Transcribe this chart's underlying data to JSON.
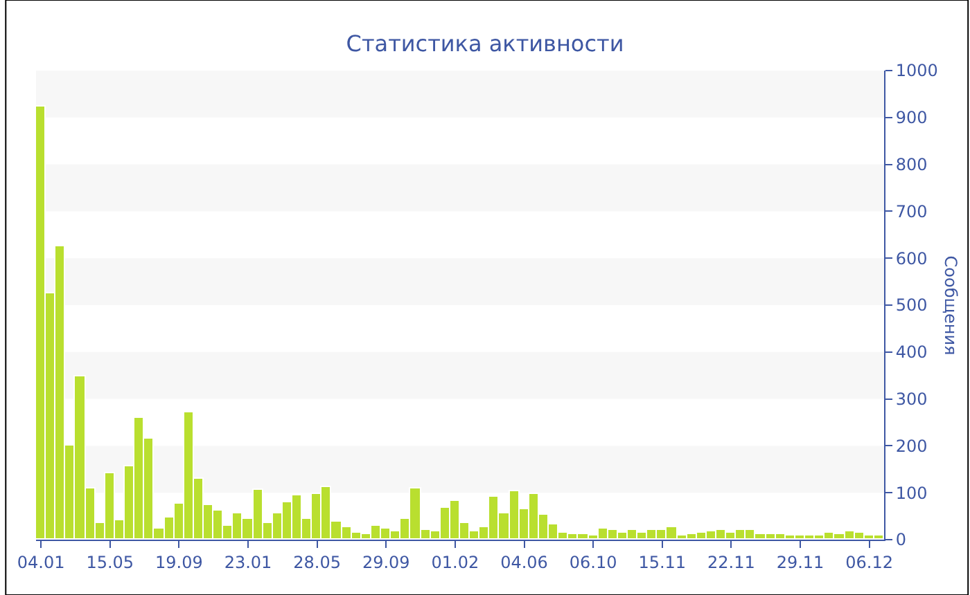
{
  "chart_data": {
    "type": "bar",
    "title": "Статистика активности",
    "ylabel": "Сообщения",
    "categories": [
      "04.01",
      null,
      null,
      null,
      null,
      null,
      null,
      "15.05",
      null,
      null,
      null,
      null,
      null,
      null,
      "19.09",
      null,
      null,
      null,
      null,
      null,
      null,
      "23.01",
      null,
      null,
      null,
      null,
      null,
      null,
      "28.05",
      null,
      null,
      null,
      null,
      null,
      null,
      "29.09",
      null,
      null,
      null,
      null,
      null,
      null,
      "01.02",
      null,
      null,
      null,
      null,
      null,
      null,
      "04.06",
      null,
      null,
      null,
      null,
      null,
      null,
      "06.10",
      null,
      null,
      null,
      null,
      null,
      null,
      "15.11",
      null,
      null,
      null,
      null,
      null,
      null,
      "22.11",
      null,
      null,
      null,
      null,
      null,
      null,
      "29.11",
      null,
      null,
      null,
      null,
      null,
      null,
      "06.12",
      null
    ],
    "values": [
      924,
      526,
      626,
      200,
      349,
      108,
      34,
      143,
      41,
      155,
      261,
      214,
      25,
      46,
      77,
      270,
      130,
      74,
      61,
      30,
      55,
      45,
      106,
      35,
      57,
      80,
      95,
      44,
      98,
      113,
      39,
      28,
      14,
      12,
      29,
      23,
      18,
      45,
      110,
      20,
      17,
      67,
      82,
      34,
      18,
      28,
      91,
      55,
      102,
      64,
      96,
      53,
      32,
      14,
      12,
      12,
      10,
      23,
      21,
      14,
      20,
      14,
      20,
      20,
      28,
      8,
      12,
      16,
      19,
      20,
      15,
      20,
      20,
      13,
      11,
      13,
      8,
      9,
      9,
      9,
      15,
      13,
      17,
      14,
      10,
      10
    ],
    "color": "#b9df2f",
    "ylim": [
      0,
      1000
    ],
    "yticks": [
      0,
      100,
      200,
      300,
      400,
      500,
      600,
      700,
      800,
      900,
      1000
    ],
    "bands": [
      {
        "axis": "y",
        "from": 100,
        "to": 200,
        "color": "#f7f7f7"
      },
      {
        "axis": "y",
        "from": 300,
        "to": 400,
        "color": "#f7f7f7"
      },
      {
        "axis": "y",
        "from": 500,
        "to": 600,
        "color": "#f7f7f7"
      },
      {
        "axis": "y",
        "from": 700,
        "to": 800,
        "color": "#f7f7f7"
      },
      {
        "axis": "y",
        "from": 900,
        "to": 1000,
        "color": "#f7f7f7"
      }
    ],
    "legend": false
  }
}
